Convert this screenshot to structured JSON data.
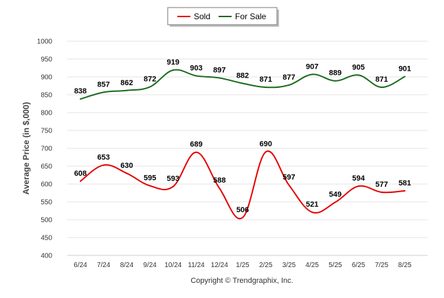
{
  "chart_data": {
    "type": "line",
    "title": "",
    "xlabel": "",
    "ylabel": "Average Price (in $,000)",
    "ylim": [
      400,
      1000
    ],
    "ytick_step": 50,
    "grid": true,
    "legend_placement": "top-center",
    "categories": [
      "6/24",
      "7/24",
      "8/24",
      "9/24",
      "10/24",
      "11/24",
      "12/24",
      "1/25",
      "2/25",
      "3/25",
      "4/25",
      "5/25",
      "6/25",
      "7/25",
      "8/25"
    ],
    "series": [
      {
        "name": "Sold",
        "color": "#e60000",
        "values": [
          608,
          653,
          630,
          595,
          593,
          689,
          588,
          506,
          690,
          597,
          521,
          549,
          594,
          577,
          581
        ],
        "label_position": "above"
      },
      {
        "name": "For Sale",
        "color": "#1a6b1a",
        "values": [
          838,
          857,
          862,
          872,
          919,
          903,
          897,
          882,
          871,
          877,
          907,
          889,
          905,
          871,
          901
        ],
        "label_position": "above"
      }
    ],
    "footer": "Copyright © Trendgraphix, Inc."
  }
}
